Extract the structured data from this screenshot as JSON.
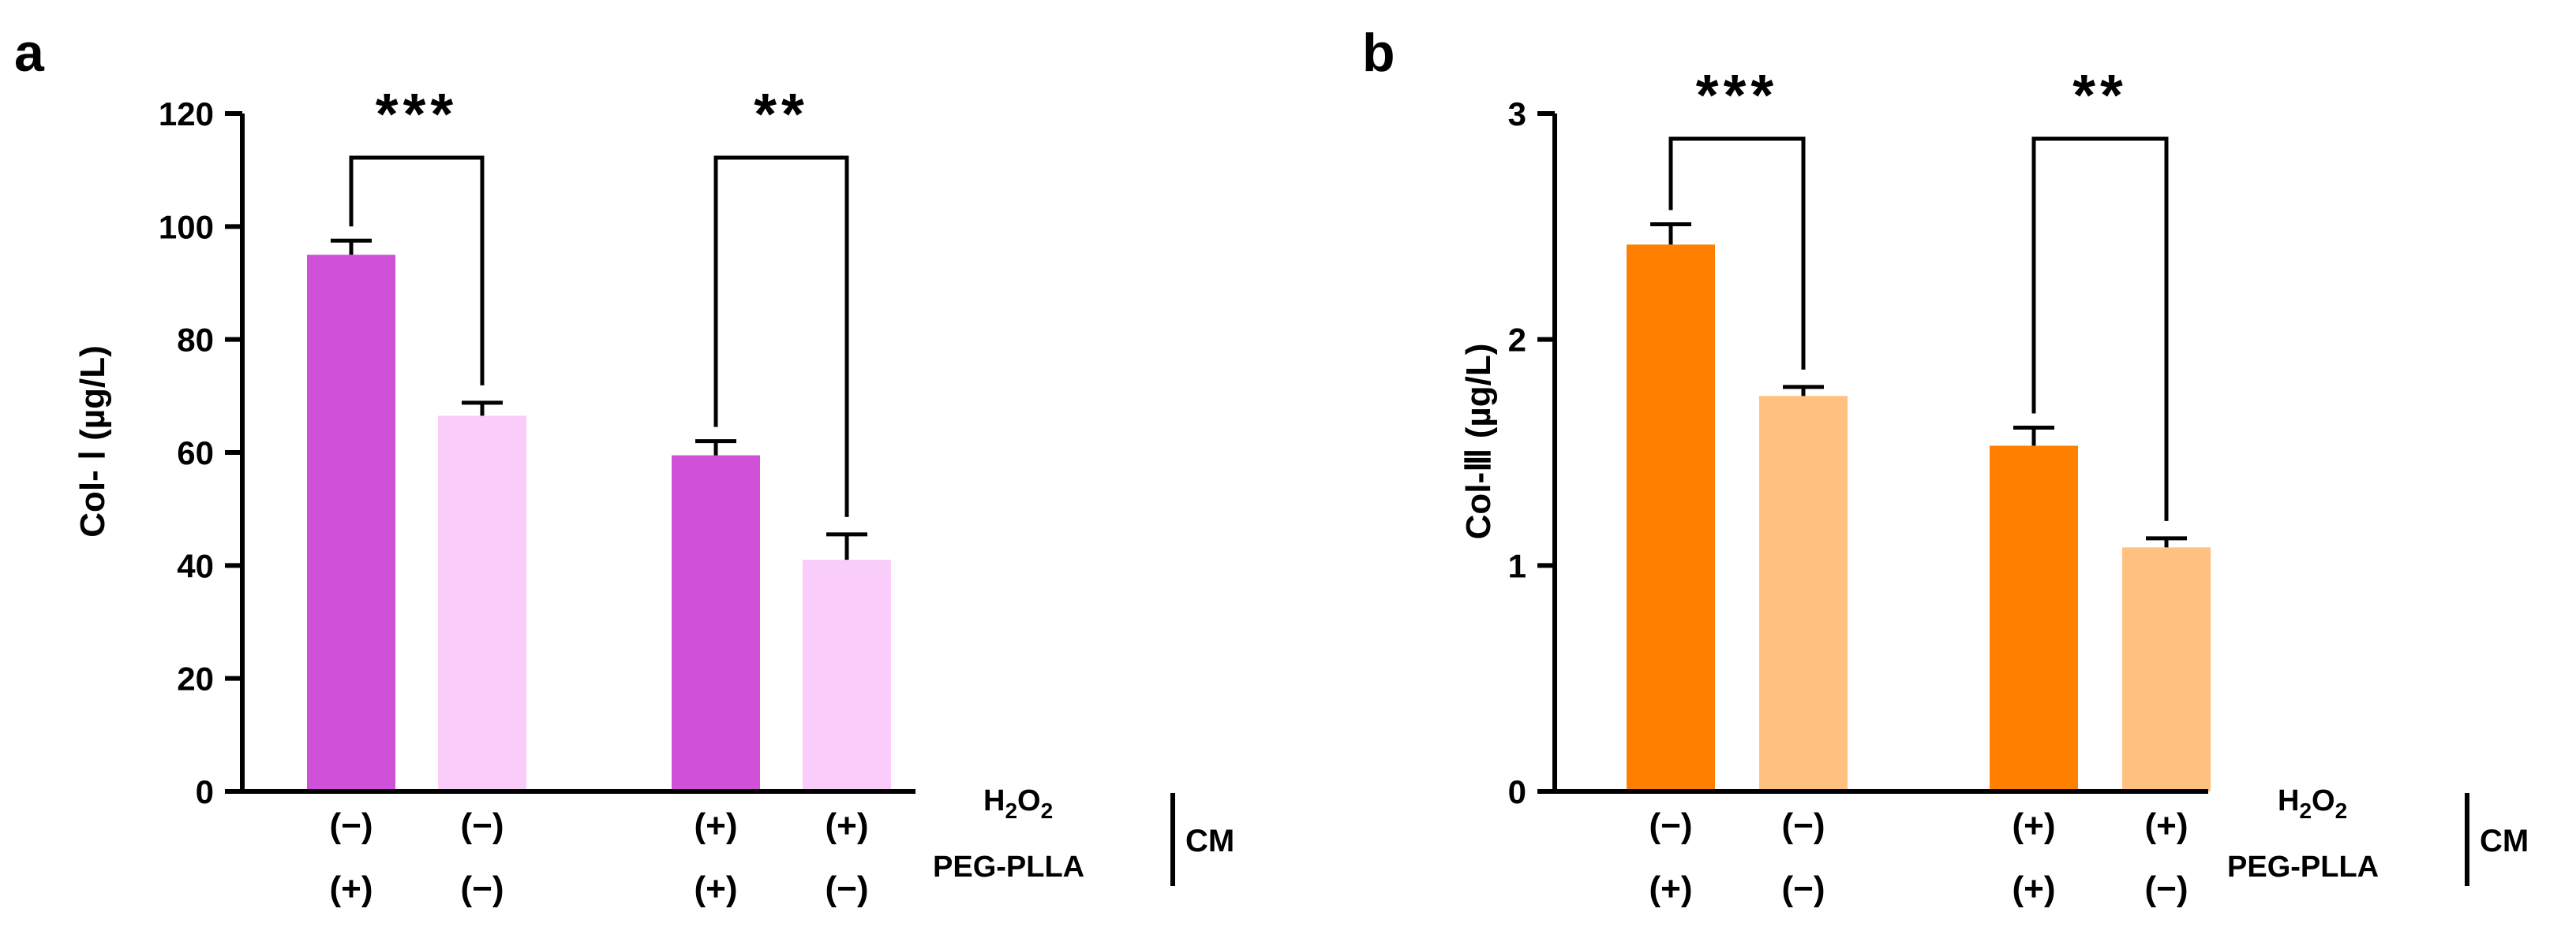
{
  "chart_data": [
    {
      "panel": "a",
      "type": "bar",
      "ylabel": "Col- Ⅰ (µg/L)",
      "ylim": [
        0,
        120
      ],
      "yticks": [
        0,
        20,
        40,
        60,
        80,
        100,
        120
      ],
      "ytick_labels": [
        "0",
        "20",
        "40",
        "60",
        "80",
        "100",
        "120"
      ],
      "categories": [
        "(−) (+)",
        "(−) (−)",
        "(+) (+)",
        "(+) (−)"
      ],
      "cond_h2o2": [
        "(−)",
        "(−)",
        "(+)",
        "(+)"
      ],
      "cond_pegplla": [
        "(+)",
        "(−)",
        "(+)",
        "(−)"
      ],
      "values": [
        95,
        66.5,
        59.5,
        41
      ],
      "errors": [
        2.5,
        2.3,
        2.5,
        4.5
      ],
      "colors": [
        "#d050d8",
        "#f9ccf9",
        "#d050d8",
        "#f9ccf9"
      ],
      "significance": [
        {
          "between": [
            0,
            1
          ],
          "label": "***"
        },
        {
          "between": [
            2,
            3
          ],
          "label": "**"
        }
      ]
    },
    {
      "panel": "b",
      "type": "bar",
      "ylabel": "Col-Ⅲ (µg/L)",
      "ylim": [
        0,
        3
      ],
      "yticks": [
        0,
        1,
        2,
        3
      ],
      "ytick_labels": [
        "0",
        "1",
        "2",
        "3"
      ],
      "categories": [
        "(−) (+)",
        "(−) (−)",
        "(+) (+)",
        "(+) (−)"
      ],
      "cond_h2o2": [
        "(−)",
        "(−)",
        "(+)",
        "(+)"
      ],
      "cond_pegplla": [
        "(+)",
        "(−)",
        "(+)",
        "(−)"
      ],
      "values": [
        2.42,
        1.75,
        1.53,
        1.08
      ],
      "errors": [
        0.09,
        0.04,
        0.08,
        0.04
      ],
      "colors": [
        "#ff8000",
        "#ffc080",
        "#ff8000",
        "#ffc080"
      ],
      "significance": [
        {
          "between": [
            0,
            1
          ],
          "label": "***"
        },
        {
          "between": [
            2,
            3
          ],
          "label": "**"
        }
      ]
    }
  ],
  "legend": {
    "h2o2": "H",
    "h2o2_sub1": "2",
    "h2o2_o": "O",
    "h2o2_sub2": "2",
    "pegplla": "PEG-PLLA",
    "cm": "CM"
  }
}
